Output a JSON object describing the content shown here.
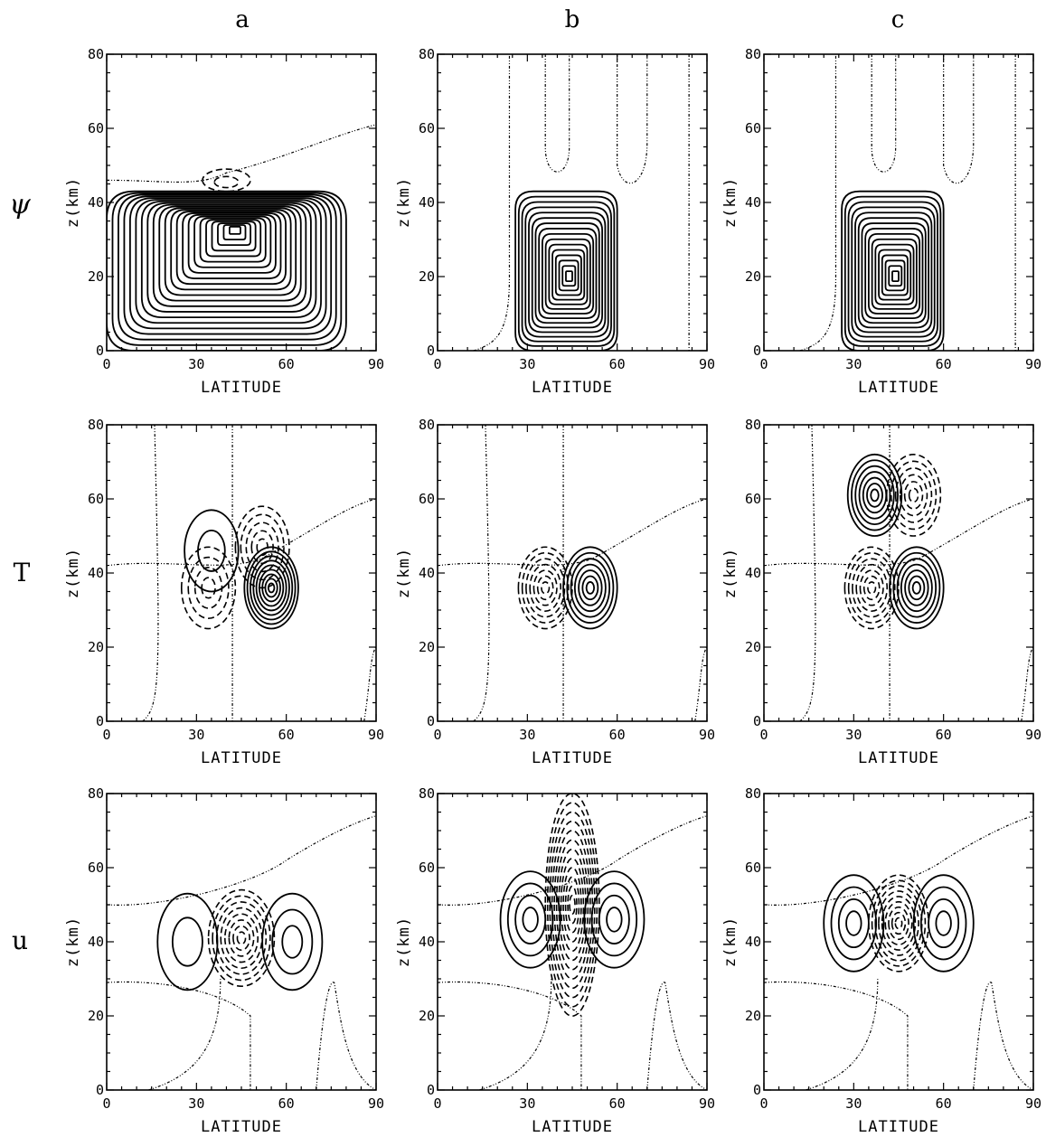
{
  "columns": [
    "a",
    "b",
    "c"
  ],
  "rows": [
    {
      "label": "ψ",
      "key": "psi"
    },
    {
      "label": "T",
      "key": "T"
    },
    {
      "label": "u",
      "key": "u"
    }
  ],
  "chart_data": [
    {
      "type": "contour",
      "row": "ψ",
      "column": "a",
      "xlabel": "LATITUDE",
      "ylabel": "z(km)",
      "xlim": [
        0,
        90
      ],
      "ylim": [
        0,
        80
      ],
      "xticks": [
        "0",
        "30",
        "60",
        "90"
      ],
      "yticks": [
        "0",
        "20",
        "40",
        "60",
        "80"
      ],
      "features": [
        {
          "sign": "positive",
          "center": [
            43,
            33
          ],
          "extent_lat": [
            0,
            80
          ],
          "extent_z": [
            0,
            43
          ],
          "levels": 22
        },
        {
          "sign": "negative",
          "center": [
            40,
            45
          ],
          "extent_lat": [
            32,
            48
          ],
          "extent_z": [
            43,
            49
          ],
          "levels": 2
        }
      ]
    },
    {
      "type": "contour",
      "row": "ψ",
      "column": "b",
      "xlabel": "LATITUDE",
      "ylabel": "z(km)",
      "xlim": [
        0,
        90
      ],
      "ylim": [
        0,
        80
      ],
      "xticks": [
        "0",
        "30",
        "60",
        "90"
      ],
      "yticks": [
        "0",
        "20",
        "40",
        "60",
        "80"
      ],
      "features": [
        {
          "sign": "positive",
          "center": [
            44,
            20
          ],
          "extent_lat": [
            26,
            60
          ],
          "extent_z": [
            0,
            43
          ],
          "levels": 16
        }
      ]
    },
    {
      "type": "contour",
      "row": "ψ",
      "column": "c",
      "xlabel": "LATITUDE",
      "ylabel": "z(km)",
      "xlim": [
        0,
        90
      ],
      "ylim": [
        0,
        80
      ],
      "xticks": [
        "0",
        "30",
        "60",
        "90"
      ],
      "yticks": [
        "0",
        "20",
        "40",
        "60",
        "80"
      ],
      "features": [
        {
          "sign": "positive",
          "center": [
            44,
            20
          ],
          "extent_lat": [
            26,
            60
          ],
          "extent_z": [
            0,
            43
          ],
          "levels": 16
        }
      ]
    },
    {
      "type": "contour",
      "row": "T",
      "column": "a",
      "xlabel": "LATITUDE",
      "ylabel": "z(km)",
      "xlim": [
        0,
        90
      ],
      "ylim": [
        0,
        80
      ],
      "xticks": [
        "0",
        "30",
        "60",
        "90"
      ],
      "yticks": [
        "0",
        "20",
        "40",
        "60",
        "80"
      ],
      "features": [
        {
          "sign": "positive",
          "center": [
            35,
            46
          ],
          "levels": 2
        },
        {
          "sign": "negative",
          "center": [
            52,
            47
          ],
          "levels": 5
        },
        {
          "sign": "negative",
          "center": [
            34,
            36
          ],
          "levels": 4
        },
        {
          "sign": "positive",
          "center": [
            55,
            36
          ],
          "levels": 9
        }
      ]
    },
    {
      "type": "contour",
      "row": "T",
      "column": "b",
      "xlabel": "LATITUDE",
      "ylabel": "z(km)",
      "xlim": [
        0,
        90
      ],
      "ylim": [
        0,
        80
      ],
      "xticks": [
        "0",
        "30",
        "60",
        "90"
      ],
      "yticks": [
        "0",
        "20",
        "40",
        "60",
        "80"
      ],
      "features": [
        {
          "sign": "negative",
          "center": [
            36,
            36
          ],
          "levels": 7
        },
        {
          "sign": "positive",
          "center": [
            51,
            36
          ],
          "levels": 7
        }
      ]
    },
    {
      "type": "contour",
      "row": "T",
      "column": "c",
      "xlabel": "LATITUDE",
      "ylabel": "z(km)",
      "xlim": [
        0,
        90
      ],
      "ylim": [
        0,
        80
      ],
      "xticks": [
        "0",
        "30",
        "60",
        "90"
      ],
      "yticks": [
        "0",
        "20",
        "40",
        "60",
        "80"
      ],
      "features": [
        {
          "sign": "positive",
          "center": [
            37,
            61
          ],
          "levels": 7
        },
        {
          "sign": "negative",
          "center": [
            50,
            61
          ],
          "levels": 6
        },
        {
          "sign": "negative",
          "center": [
            36,
            36
          ],
          "levels": 7
        },
        {
          "sign": "positive",
          "center": [
            51,
            36
          ],
          "levels": 7
        }
      ]
    },
    {
      "type": "contour",
      "row": "u",
      "column": "a",
      "xlabel": "LATITUDE",
      "ylabel": "z(km)",
      "xlim": [
        0,
        90
      ],
      "ylim": [
        0,
        80
      ],
      "xticks": [
        "0",
        "30",
        "60",
        "90"
      ],
      "yticks": [
        "0",
        "20",
        "40",
        "60",
        "80"
      ],
      "features": [
        {
          "sign": "negative",
          "center": [
            45,
            41
          ],
          "levels": 8
        },
        {
          "sign": "positive",
          "center": [
            27,
            40
          ],
          "levels": 2
        },
        {
          "sign": "positive",
          "center": [
            62,
            40
          ],
          "levels": 3
        }
      ]
    },
    {
      "type": "contour",
      "row": "u",
      "column": "b",
      "xlabel": "LATITUDE",
      "ylabel": "z(km)",
      "xlim": [
        0,
        90
      ],
      "ylim": [
        0,
        80
      ],
      "xticks": [
        "0",
        "30",
        "60",
        "90"
      ],
      "yticks": [
        "0",
        "20",
        "40",
        "60",
        "80"
      ],
      "features": [
        {
          "sign": "negative",
          "center": [
            45,
            50
          ],
          "levels": 12
        },
        {
          "sign": "positive",
          "center": [
            31,
            46
          ],
          "levels": 4
        },
        {
          "sign": "positive",
          "center": [
            59,
            46
          ],
          "levels": 4
        }
      ]
    },
    {
      "type": "contour",
      "row": "u",
      "column": "c",
      "xlabel": "LATITUDE",
      "ylabel": "z(km)",
      "xlim": [
        0,
        90
      ],
      "ylim": [
        0,
        80
      ],
      "xticks": [
        "0",
        "30",
        "60",
        "90"
      ],
      "yticks": [
        "0",
        "20",
        "40",
        "60",
        "80"
      ],
      "features": [
        {
          "sign": "negative",
          "center": [
            45,
            45
          ],
          "levels": 9
        },
        {
          "sign": "positive",
          "center": [
            30,
            45
          ],
          "levels": 4
        },
        {
          "sign": "positive",
          "center": [
            60,
            45
          ],
          "levels": 4
        }
      ]
    }
  ]
}
